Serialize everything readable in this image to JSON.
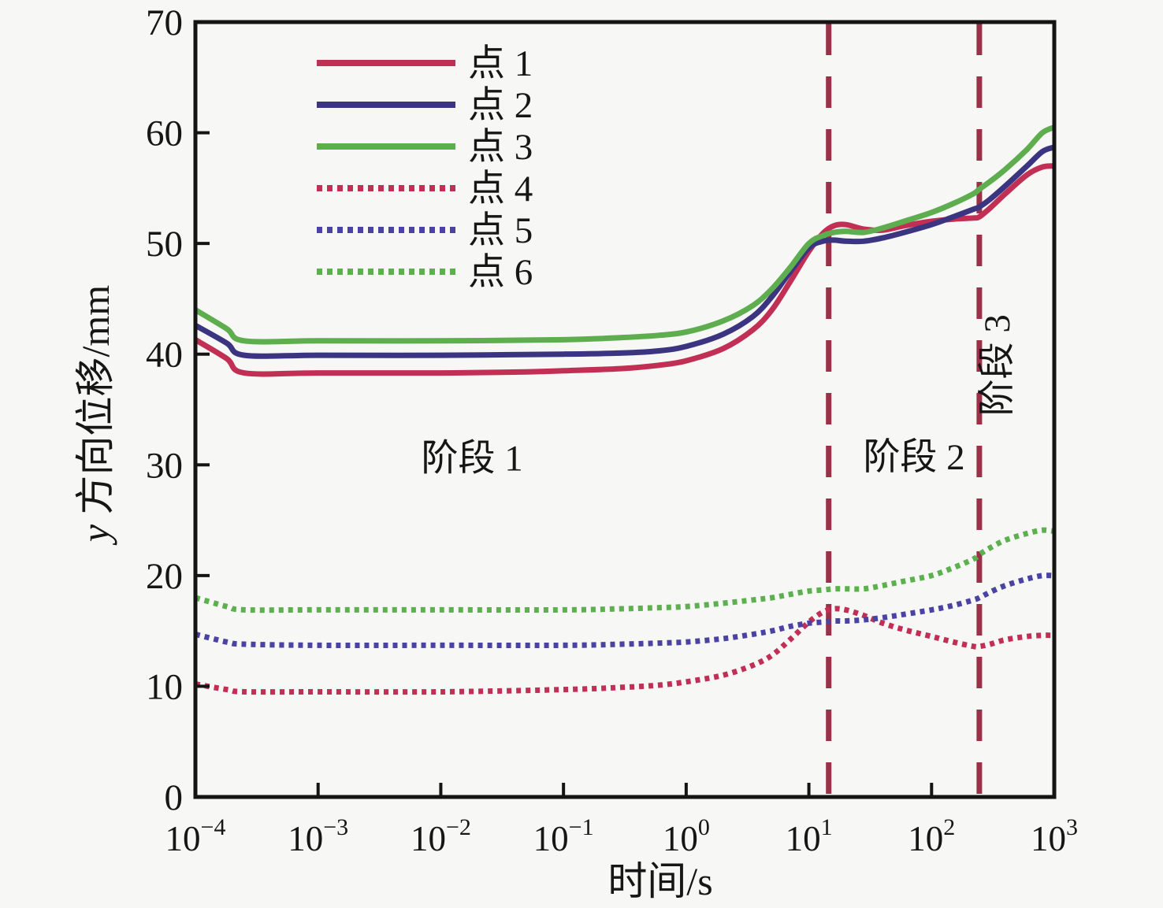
{
  "figure": {
    "background": "#f7f7f5",
    "axis_color": "#141414",
    "stage_line_color": "#9b3049"
  },
  "chart_data": {
    "type": "line",
    "title": "",
    "xlabel": "时间/s",
    "ylabel": "y 方向位移/mm",
    "x_scale": "log10",
    "xlim": [
      0.0001,
      1000
    ],
    "ylim": [
      0,
      70
    ],
    "x_tick_exponents": [
      -4,
      -3,
      -2,
      -1,
      0,
      1,
      2,
      3
    ],
    "x_tick_base": "10",
    "y_ticks": [
      0,
      10,
      20,
      30,
      40,
      50,
      60,
      70
    ],
    "grid": false,
    "legend_position": "upper-left-inside",
    "series": [
      {
        "name": "点 1",
        "color": "#c22f55",
        "style": "solid",
        "points": [
          [
            0.0001,
            41.3
          ],
          [
            0.00018,
            39.6
          ],
          [
            0.00025,
            38.3
          ],
          [
            0.001,
            38.3
          ],
          [
            0.01,
            38.3
          ],
          [
            0.05,
            38.4
          ],
          [
            0.1,
            38.5
          ],
          [
            0.3,
            38.7
          ],
          [
            0.6,
            39.0
          ],
          [
            1,
            39.4
          ],
          [
            2,
            40.5
          ],
          [
            3.5,
            42.2
          ],
          [
            5,
            44.0
          ],
          [
            7,
            46.5
          ],
          [
            10,
            49.3
          ],
          [
            13,
            50.9
          ],
          [
            16,
            51.6
          ],
          [
            20,
            51.7
          ],
          [
            28,
            51.3
          ],
          [
            40,
            51.2
          ],
          [
            60,
            51.6
          ],
          [
            100,
            52.0
          ],
          [
            150,
            52.2
          ],
          [
            220,
            52.3
          ],
          [
            245,
            52.4
          ],
          [
            300,
            53.2
          ],
          [
            400,
            54.5
          ],
          [
            600,
            56.2
          ],
          [
            800,
            56.9
          ],
          [
            1000,
            57.0
          ]
        ]
      },
      {
        "name": "点 2",
        "color": "#3b3480",
        "style": "solid",
        "points": [
          [
            0.0001,
            42.6
          ],
          [
            0.00018,
            41.0
          ],
          [
            0.00025,
            39.9
          ],
          [
            0.001,
            39.9
          ],
          [
            0.01,
            39.9
          ],
          [
            0.1,
            40.0
          ],
          [
            0.3,
            40.1
          ],
          [
            0.6,
            40.3
          ],
          [
            1,
            40.7
          ],
          [
            2,
            41.8
          ],
          [
            3.5,
            43.4
          ],
          [
            5,
            45.2
          ],
          [
            7,
            47.4
          ],
          [
            10,
            49.6
          ],
          [
            13,
            50.2
          ],
          [
            16,
            50.3
          ],
          [
            20,
            50.2
          ],
          [
            28,
            50.2
          ],
          [
            40,
            50.5
          ],
          [
            60,
            51.0
          ],
          [
            100,
            51.7
          ],
          [
            150,
            52.4
          ],
          [
            220,
            53.1
          ],
          [
            245,
            53.3
          ],
          [
            300,
            54.0
          ],
          [
            400,
            55.2
          ],
          [
            600,
            57.0
          ],
          [
            800,
            58.3
          ],
          [
            1000,
            58.7
          ]
        ]
      },
      {
        "name": "点 3",
        "color": "#5ead4f",
        "style": "solid",
        "points": [
          [
            0.0001,
            44.0
          ],
          [
            0.00018,
            42.3
          ],
          [
            0.00025,
            41.2
          ],
          [
            0.001,
            41.2
          ],
          [
            0.01,
            41.2
          ],
          [
            0.1,
            41.3
          ],
          [
            0.3,
            41.5
          ],
          [
            0.6,
            41.7
          ],
          [
            1,
            42.0
          ],
          [
            2,
            43.0
          ],
          [
            3.5,
            44.4
          ],
          [
            5,
            45.9
          ],
          [
            7,
            47.8
          ],
          [
            10,
            50.0
          ],
          [
            13,
            50.7
          ],
          [
            16,
            51.0
          ],
          [
            20,
            51.1
          ],
          [
            28,
            51.0
          ],
          [
            40,
            51.4
          ],
          [
            60,
            52.0
          ],
          [
            100,
            52.8
          ],
          [
            150,
            53.6
          ],
          [
            220,
            54.5
          ],
          [
            245,
            54.9
          ],
          [
            300,
            55.6
          ],
          [
            400,
            56.7
          ],
          [
            600,
            58.5
          ],
          [
            800,
            60.0
          ],
          [
            1000,
            60.5
          ]
        ]
      },
      {
        "name": "点 4",
        "color": "#c22f55",
        "style": "dotted",
        "points": [
          [
            0.0001,
            10.2
          ],
          [
            0.00018,
            9.7
          ],
          [
            0.00025,
            9.5
          ],
          [
            0.001,
            9.5
          ],
          [
            0.01,
            9.5
          ],
          [
            0.1,
            9.7
          ],
          [
            0.3,
            9.9
          ],
          [
            0.6,
            10.1
          ],
          [
            1,
            10.4
          ],
          [
            2,
            11.0
          ],
          [
            3.5,
            11.9
          ],
          [
            5,
            12.8
          ],
          [
            7,
            14.2
          ],
          [
            10,
            15.8
          ],
          [
            13,
            16.7
          ],
          [
            16,
            17.0
          ],
          [
            20,
            16.9
          ],
          [
            28,
            16.4
          ],
          [
            40,
            15.7
          ],
          [
            60,
            15.1
          ],
          [
            100,
            14.5
          ],
          [
            150,
            14.0
          ],
          [
            220,
            13.6
          ],
          [
            245,
            13.6
          ],
          [
            300,
            13.8
          ],
          [
            400,
            14.2
          ],
          [
            600,
            14.5
          ],
          [
            800,
            14.6
          ],
          [
            1000,
            14.6
          ]
        ]
      },
      {
        "name": "点 5",
        "color": "#4a43a4",
        "style": "dotted",
        "points": [
          [
            0.0001,
            14.7
          ],
          [
            0.00018,
            14.0
          ],
          [
            0.00025,
            13.8
          ],
          [
            0.001,
            13.7
          ],
          [
            0.01,
            13.7
          ],
          [
            0.1,
            13.7
          ],
          [
            0.3,
            13.8
          ],
          [
            0.6,
            13.9
          ],
          [
            1,
            14.0
          ],
          [
            2,
            14.3
          ],
          [
            3.5,
            14.7
          ],
          [
            5,
            15.0
          ],
          [
            7,
            15.4
          ],
          [
            10,
            15.7
          ],
          [
            13,
            15.8
          ],
          [
            16,
            15.9
          ],
          [
            20,
            15.9
          ],
          [
            28,
            16.0
          ],
          [
            40,
            16.2
          ],
          [
            60,
            16.5
          ],
          [
            100,
            16.9
          ],
          [
            150,
            17.3
          ],
          [
            220,
            17.8
          ],
          [
            245,
            18.0
          ],
          [
            300,
            18.5
          ],
          [
            400,
            19.1
          ],
          [
            600,
            19.7
          ],
          [
            800,
            20.0
          ],
          [
            1000,
            20.0
          ]
        ]
      },
      {
        "name": "点 6",
        "color": "#5cb14e",
        "style": "dotted",
        "points": [
          [
            0.0001,
            18.0
          ],
          [
            0.00018,
            17.2
          ],
          [
            0.00025,
            16.9
          ],
          [
            0.001,
            16.9
          ],
          [
            0.01,
            16.9
          ],
          [
            0.1,
            16.9
          ],
          [
            0.3,
            17.0
          ],
          [
            0.6,
            17.1
          ],
          [
            1,
            17.2
          ],
          [
            2,
            17.5
          ],
          [
            3.5,
            17.8
          ],
          [
            5,
            18.0
          ],
          [
            7,
            18.3
          ],
          [
            10,
            18.6
          ],
          [
            13,
            18.7
          ],
          [
            16,
            18.8
          ],
          [
            20,
            18.8
          ],
          [
            28,
            18.8
          ],
          [
            40,
            19.1
          ],
          [
            60,
            19.5
          ],
          [
            100,
            20.0
          ],
          [
            150,
            20.7
          ],
          [
            220,
            21.5
          ],
          [
            245,
            21.9
          ],
          [
            300,
            22.5
          ],
          [
            400,
            23.2
          ],
          [
            600,
            23.8
          ],
          [
            800,
            24.1
          ],
          [
            1000,
            24.0
          ]
        ]
      }
    ],
    "stage_lines": [
      {
        "t": 14.5
      },
      {
        "t": 245
      }
    ],
    "annotations": [
      {
        "text": "阶段 1",
        "t": 0.018,
        "y": 29.5,
        "rotate": 0
      },
      {
        "text": "阶段 2",
        "t": 72,
        "y": 29.6,
        "rotate": 0
      },
      {
        "text": "阶段 3",
        "t": 430,
        "y": 39.0,
        "rotate": -90
      }
    ]
  }
}
